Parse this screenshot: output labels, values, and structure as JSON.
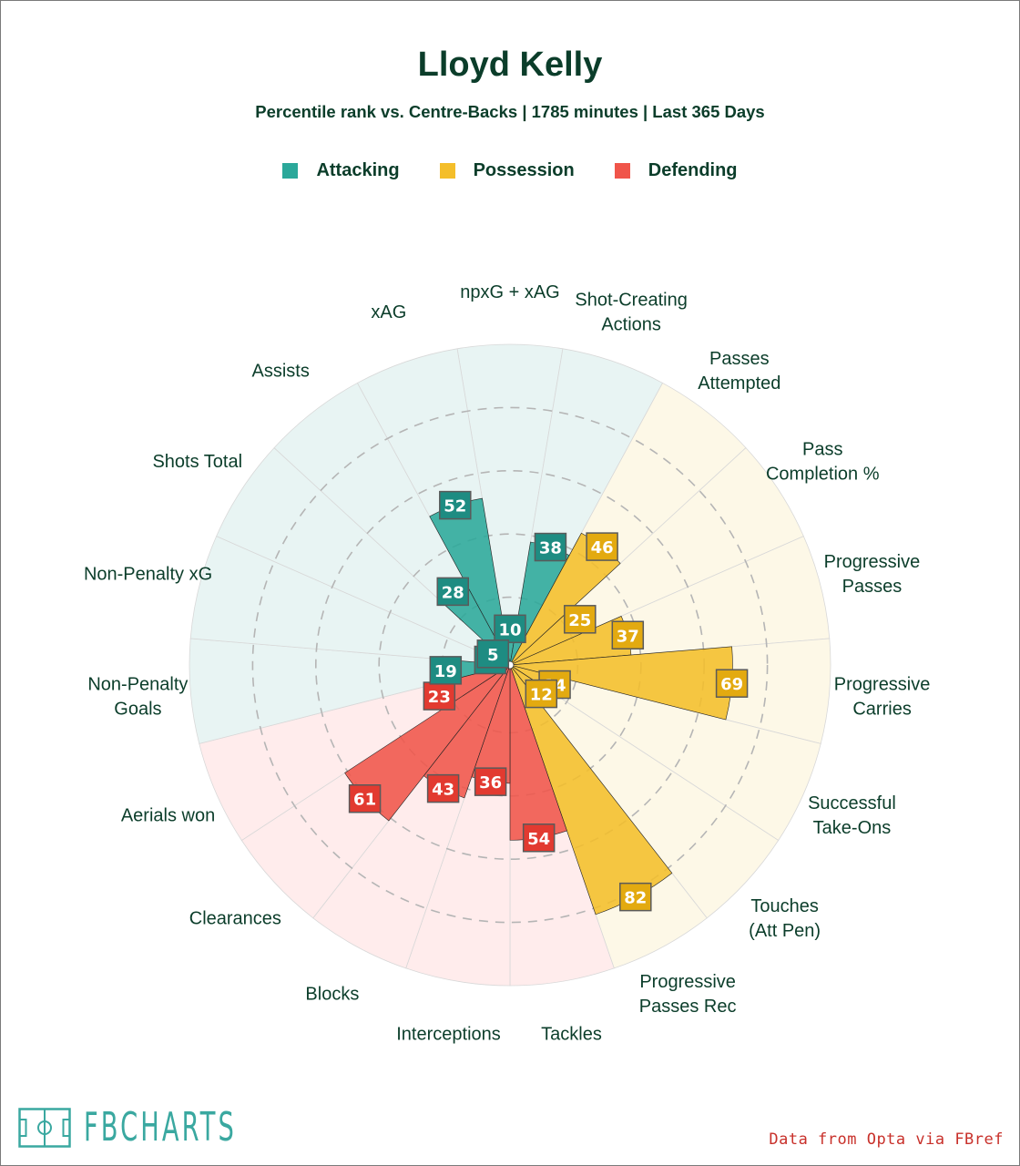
{
  "title": "Lloyd Kelly",
  "subtitle": "Percentile rank vs. Centre-Backs | 1785 minutes | Last 365 Days",
  "legend": [
    {
      "label": "Attacking",
      "color": "#2ba89a"
    },
    {
      "label": "Possession",
      "color": "#f4be2a"
    },
    {
      "label": "Defending",
      "color": "#f0554a"
    }
  ],
  "chart_data": {
    "type": "radial_bar",
    "range": [
      0,
      100
    ],
    "metrics": [
      {
        "label": "npxG + xAG",
        "value": 10,
        "group": "Attacking"
      },
      {
        "label": "Shot-Creating Actions",
        "value": 38,
        "group": "Attacking"
      },
      {
        "label": "Passes Attempted",
        "value": 46,
        "group": "Possession"
      },
      {
        "label": "Pass Completion %",
        "value": 25,
        "group": "Possession"
      },
      {
        "label": "Progressive Passes",
        "value": 37,
        "group": "Possession"
      },
      {
        "label": "Progressive Carries",
        "value": 69,
        "group": "Possession"
      },
      {
        "label": "Successful Take-Ons",
        "value": 14,
        "group": "Possession"
      },
      {
        "label": "Touches (Att Pen)",
        "value": 12,
        "group": "Possession"
      },
      {
        "label": "Progressive Passes Rec",
        "value": 82,
        "group": "Possession"
      },
      {
        "label": "Tackles",
        "value": 54,
        "group": "Defending"
      },
      {
        "label": "Interceptions",
        "value": 36,
        "group": "Defending"
      },
      {
        "label": "Blocks",
        "value": 43,
        "group": "Defending"
      },
      {
        "label": "Clearances",
        "value": 61,
        "group": "Defending"
      },
      {
        "label": "Aerials won",
        "value": 23,
        "group": "Defending"
      },
      {
        "label": "Non-Penalty Goals",
        "value": 19,
        "group": "Attacking"
      },
      {
        "label": "Non-Penalty xG",
        "value": 5,
        "group": "Attacking"
      },
      {
        "label": "Shots Total",
        "value": 5,
        "group": "Attacking"
      },
      {
        "label": "Assists",
        "value": 28,
        "group": "Attacking"
      },
      {
        "label": "xAG",
        "value": 52,
        "group": "Attacking"
      }
    ]
  },
  "logo": {
    "text": "FBCHARTS",
    "color": "#3aa8a0"
  },
  "credit": "Data from Opta via FBref"
}
